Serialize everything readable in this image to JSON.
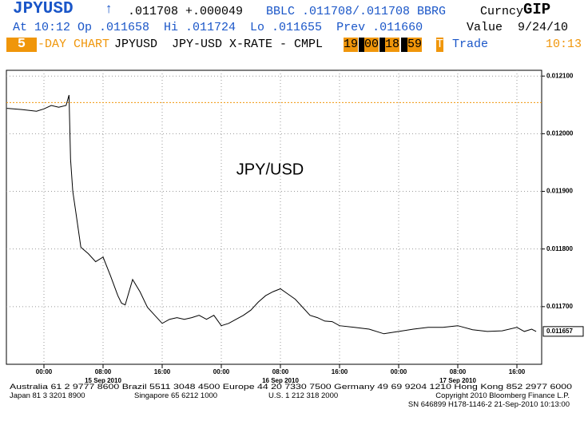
{
  "header": {
    "ticker": "JPYUSD",
    "arrow": "↑",
    "last": ".011708",
    "change": "+.000049",
    "source": "BBLC .011708/.011708 BBRG",
    "market": "Curncy",
    "function": "GIP",
    "row2": "At 10:12 Op .011658  Hi .011724  Lo .011655  Prev .011660",
    "value_label": "Value",
    "value_date": "9/24/10",
    "period_num": "5",
    "period_text": "-DAY CHART",
    "desc": "JPYUSD  JPY-USD X-RATE - CMPL",
    "t1h": "19",
    "t1m": "00",
    "t2h": "18",
    "t2m": "59",
    "t_flag": "T",
    "t_type": "Trade",
    "clock": "10:13"
  },
  "chart_data": {
    "type": "line",
    "annotation": "JPY/USD",
    "xlim": [
      -5.08,
      67.35
    ],
    "xticks": [
      {
        "value": 0,
        "label": "00:00"
      },
      {
        "value": 8,
        "label": "08:00"
      },
      {
        "value": 16,
        "label": "16:00"
      },
      {
        "value": 24,
        "label": "00:00"
      },
      {
        "value": 32,
        "label": "08:00"
      },
      {
        "value": 40,
        "label": "16:00"
      },
      {
        "value": 48,
        "label": "00:00"
      },
      {
        "value": 56,
        "label": "08:00"
      },
      {
        "value": 64,
        "label": "16:00"
      }
    ],
    "date_labels": [
      {
        "value": 8,
        "label": "15 Sep 2010"
      },
      {
        "value": 32,
        "label": "16 Sep 2010"
      },
      {
        "value": 56,
        "label": "17 Sep 2010"
      }
    ],
    "ylim": [
      0.0116,
      0.01211
    ],
    "yticks": [
      {
        "value": 0.0117,
        "label": "0.011700"
      },
      {
        "value": 0.0118,
        "label": "0.011800"
      },
      {
        "value": 0.0119,
        "label": "0.011900"
      },
      {
        "value": 0.012,
        "label": "0.012000"
      },
      {
        "value": 0.0121,
        "label": "0.012100"
      }
    ],
    "grid": true,
    "reference_line": 0.012054,
    "reference_color": "#f0960a",
    "last_label": {
      "value": 0.011657,
      "label": "0.011657"
    },
    "series": [
      {
        "color": "#000000",
        "x": [
          -5,
          -3,
          -1,
          0,
          1,
          2,
          3,
          3.4,
          3.6,
          3.9,
          4.3,
          5,
          6,
          7,
          8,
          9,
          10,
          10.5,
          11,
          12,
          13,
          14,
          15,
          16,
          17,
          18,
          19,
          20,
          21,
          22,
          23,
          24,
          25,
          26,
          27,
          28,
          29,
          30,
          31,
          32,
          33,
          34,
          35,
          36,
          37,
          38,
          39,
          40,
          42,
          44,
          46,
          48,
          50,
          52,
          54,
          56,
          58,
          60,
          62,
          64,
          65,
          66,
          66.6
        ],
        "values": [
          0.012044,
          0.012042,
          0.012039,
          0.012043,
          0.012049,
          0.012046,
          0.012049,
          0.012067,
          0.011956,
          0.0119,
          0.011865,
          0.011803,
          0.011792,
          0.011778,
          0.011786,
          0.011754,
          0.011719,
          0.011706,
          0.011703,
          0.011747,
          0.011726,
          0.011699,
          0.011685,
          0.011671,
          0.011678,
          0.011681,
          0.011678,
          0.011681,
          0.011685,
          0.011678,
          0.011685,
          0.011667,
          0.011671,
          0.011678,
          0.011685,
          0.011694,
          0.011708,
          0.011719,
          0.011726,
          0.011731,
          0.011722,
          0.011713,
          0.011699,
          0.011685,
          0.011681,
          0.011675,
          0.011674,
          0.011667,
          0.011664,
          0.011661,
          0.011653,
          0.011657,
          0.011661,
          0.011664,
          0.011664,
          0.011667,
          0.01166,
          0.011657,
          0.011658,
          0.011664,
          0.011657,
          0.011661,
          0.011657
        ]
      }
    ]
  },
  "footer": {
    "line1": "Australia 61 2 9777 8600 Brazil 5511 3048 4500 Europe 44 20 7330 7500 Germany 49 69 9204 1210 Hong Kong 852 2977 6000",
    "line2a": "Japan 81 3 3201 8900",
    "line2b": "Singapore 65 6212 1000",
    "line2c": "U.S. 1 212 318 2000",
    "line2d": "Copyright 2010 Bloomberg Finance L.P.",
    "line3": "SN 646899 H178-1146-2 21-Sep-2010 10:13:00"
  }
}
